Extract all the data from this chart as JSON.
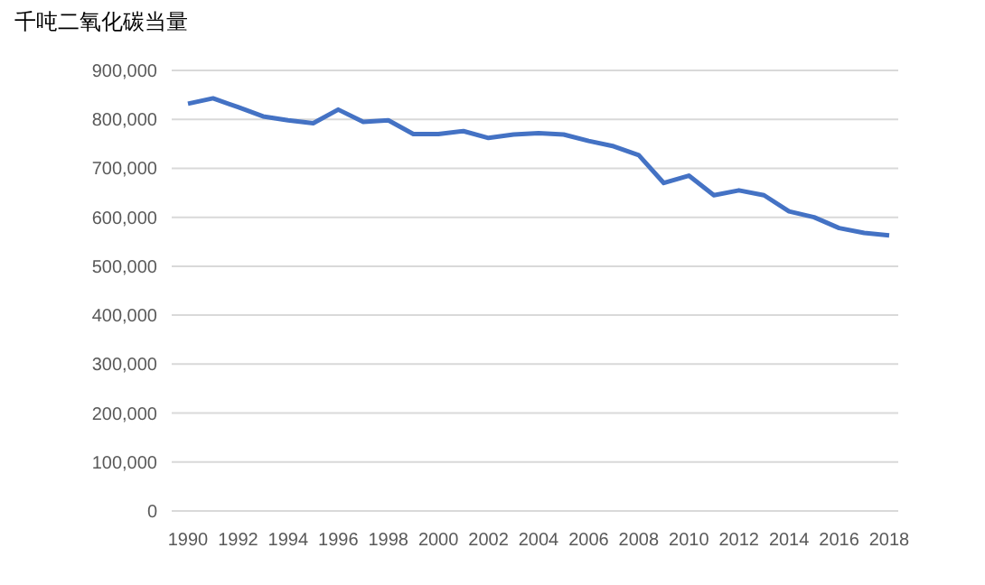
{
  "chart_data": {
    "type": "line",
    "ylabel": "千吨二氧化碳当量",
    "categories": [
      "1990",
      null,
      "1992",
      null,
      "1994",
      null,
      "1996",
      null,
      "1998",
      null,
      "2000",
      null,
      "2002",
      null,
      "2004",
      null,
      "2006",
      null,
      "2008",
      null,
      "2010",
      null,
      "2012",
      null,
      "2014",
      null,
      "2016",
      null,
      "2018"
    ],
    "series": [
      {
        "color": "#4472c4",
        "values": [
          832000,
          843000,
          825000,
          806000,
          798000,
          792000,
          820000,
          795000,
          798000,
          770000,
          770000,
          776000,
          762000,
          769000,
          772000,
          769000,
          756000,
          745000,
          727000,
          670000,
          685000,
          645000,
          655000,
          645000,
          612000,
          600000,
          578000,
          568000,
          563000
        ]
      }
    ],
    "ylim": [
      0,
      900000
    ],
    "yticks": [
      {
        "value": 0,
        "label": "0"
      },
      {
        "value": 100000,
        "label": "100,000"
      },
      {
        "value": 200000,
        "label": "200,000"
      },
      {
        "value": 300000,
        "label": "300,000"
      },
      {
        "value": 400000,
        "label": "400,000"
      },
      {
        "value": 500000,
        "label": "500,000"
      },
      {
        "value": 600000,
        "label": "600,000"
      },
      {
        "value": 700000,
        "label": "700,000"
      },
      {
        "value": 800000,
        "label": "800,000"
      },
      {
        "value": 900000,
        "label": "900,000"
      }
    ],
    "grid": "y",
    "marker": "none",
    "line_style": "solid"
  }
}
